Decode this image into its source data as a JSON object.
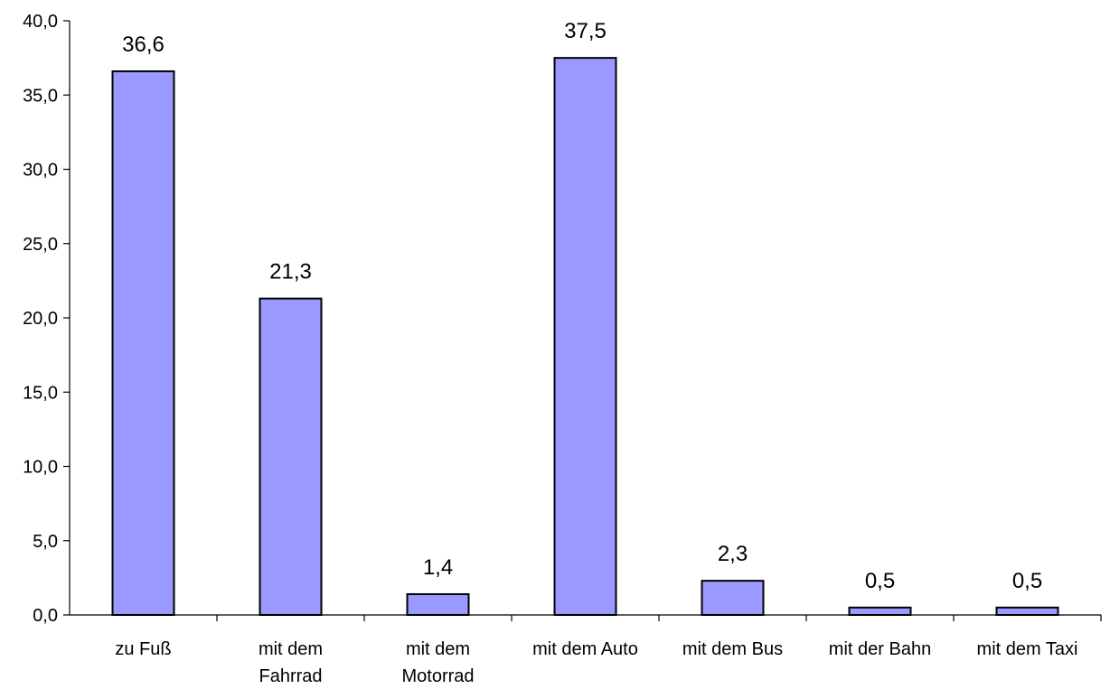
{
  "chart_data": {
    "type": "bar",
    "title": "",
    "xlabel": "",
    "ylabel": "",
    "categories": [
      [
        "zu Fuß"
      ],
      [
        "mit dem",
        "Fahrrad"
      ],
      [
        "mit dem",
        "Motorrad"
      ],
      [
        "mit dem Auto"
      ],
      [
        "mit dem Bus"
      ],
      [
        "mit der Bahn"
      ],
      [
        "mit dem Taxi"
      ]
    ],
    "values": [
      36.6,
      21.3,
      1.4,
      37.5,
      2.3,
      0.5,
      0.5
    ],
    "value_labels": [
      "36,6",
      "21,3",
      "1,4",
      "37,5",
      "2,3",
      "0,5",
      "0,5"
    ],
    "ylim": [
      0,
      40
    ],
    "yticks": [
      0,
      5,
      10,
      15,
      20,
      25,
      30,
      35,
      40
    ],
    "ytick_labels": [
      "0,0",
      "5,0",
      "10,0",
      "15,0",
      "20,0",
      "25,0",
      "30,0",
      "35,0",
      "40,0"
    ],
    "grid": false,
    "legend": "none",
    "bar_color": "#9999ff",
    "bar_edge_color": "#000000"
  }
}
